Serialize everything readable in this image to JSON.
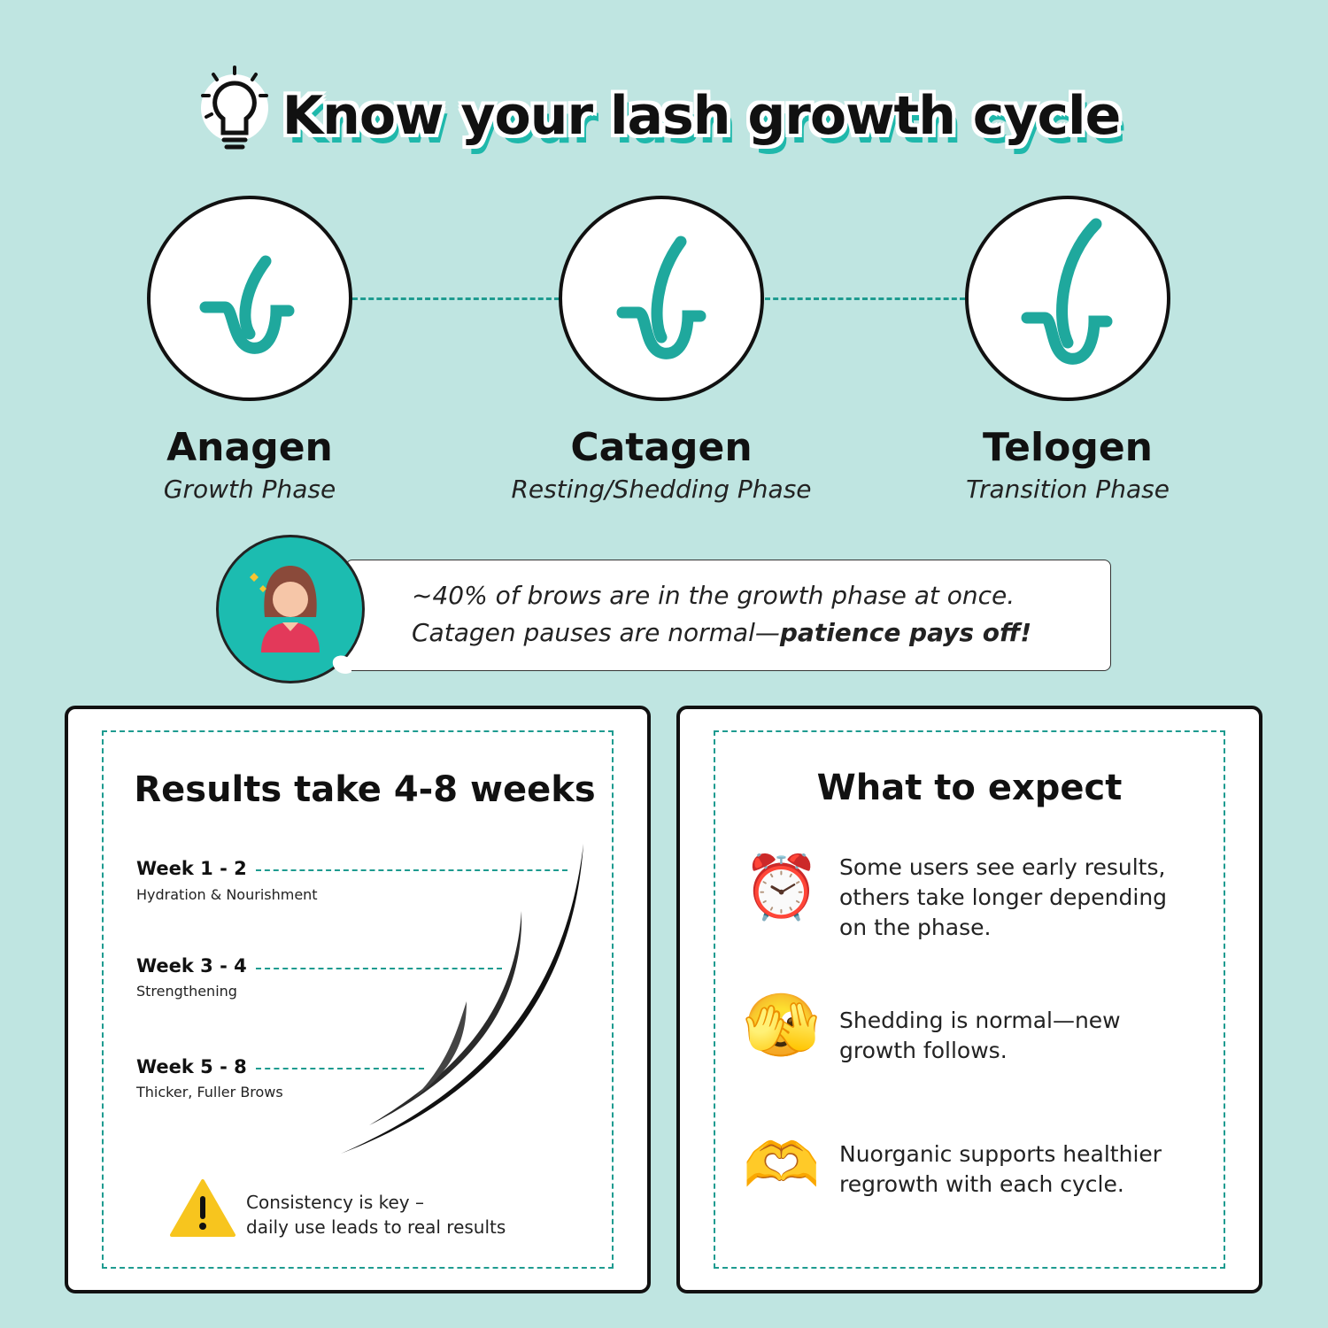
{
  "title": "Know your lash growth cycle",
  "colors": {
    "background": "#bfe5e1",
    "accent": "#1fa89d",
    "avatar_bg": "#1cbcb0"
  },
  "phases": [
    {
      "name": "Anagen",
      "subtitle": "Growth Phase",
      "icon": "hair-follicle-icon"
    },
    {
      "name": "Catagen",
      "subtitle": "Resting/Shedding Phase",
      "icon": "hair-follicle-icon"
    },
    {
      "name": "Telogen",
      "subtitle": "Transition Phase",
      "icon": "hair-follicle-icon"
    }
  ],
  "callout": {
    "line1": "~40% of brows are in the growth phase at once.",
    "line2_regular": "Catagen pauses are normal—",
    "line2_bold": "patience pays off!",
    "icon": "woman-avatar-icon"
  },
  "results": {
    "heading": "Results take 4-8 weeks",
    "weeks": [
      {
        "label": "Week 1 - 2",
        "desc": "Hydration & Nourishment"
      },
      {
        "label": "Week 3 - 4",
        "desc": "Strengthening"
      },
      {
        "label": "Week 5 - 8",
        "desc": "Thicker, Fuller Brows"
      }
    ],
    "note_line1": "Consistency is key –",
    "note_line2": "daily use leads to real results",
    "note_icon": "warning-icon"
  },
  "expect": {
    "heading": "What to expect",
    "items": [
      {
        "icon": "alarm-clock-icon",
        "emoji": "⏰",
        "lines": [
          "Some users see early results,",
          "others take longer depending",
          "on the phase."
        ]
      },
      {
        "icon": "face-peeking-icon",
        "emoji": "🫣",
        "lines": [
          "Shedding is normal—new",
          "growth follows."
        ]
      },
      {
        "icon": "heart-hands-icon",
        "emoji": "🫶",
        "lines": [
          "Nuorganic supports healthier",
          "regrowth with each cycle."
        ]
      }
    ]
  }
}
